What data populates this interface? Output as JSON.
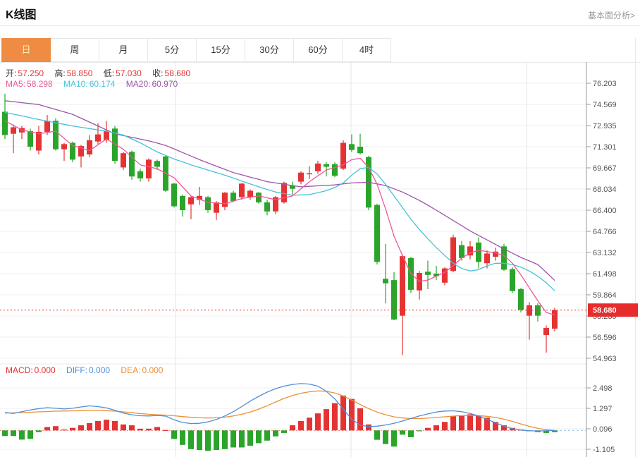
{
  "header": {
    "title": "K线图",
    "link": "基本面分析>"
  },
  "tabs": {
    "items": [
      "日",
      "周",
      "月",
      "5分",
      "15分",
      "30分",
      "60分",
      "4时"
    ],
    "selected": "日"
  },
  "ohlc": {
    "o_label": "开:",
    "o": "57.250",
    "h_label": "高:",
    "h": "58.850",
    "l_label": "低:",
    "l": "57.030",
    "c_label": "收:",
    "c": "58.680"
  },
  "ma_row": {
    "ma5_label": "MA5:",
    "ma5": "58.298",
    "ma10_label": "MA10:",
    "ma10": "60.174",
    "ma20_label": "MA20:",
    "ma20": "60.970"
  },
  "macd_row": {
    "macd_label": "MACD:",
    "macd": "0.000",
    "diff_label": "DIFF:",
    "diff": "0.000",
    "dea_label": "DEA:",
    "dea": "0.000"
  },
  "colors": {
    "up_red": "#e53333",
    "down_green": "#2aa52a",
    "ma5_pink": "#f0569a",
    "ma10_cyan": "#45c2d8",
    "ma20_purple": "#9a55a8",
    "diff_blue": "#4f8fd8",
    "dea_orange": "#ef8f33",
    "tab_active_bg": "#ef8b43",
    "tab_active_text": "#fbf0b5",
    "price_tag_red": "#e62c2c",
    "axis_text": "#555555"
  },
  "chart_data": {
    "type": "candlestick",
    "panels": [
      "price",
      "macd"
    ],
    "title": "K线图",
    "legend": [
      "MA5",
      "MA10",
      "MA20",
      "MACD",
      "DIFF",
      "DEA"
    ],
    "grid": true,
    "price_axis_ticks": [
      "76.203",
      "74.569",
      "72.935",
      "71.301",
      "69.667",
      "68.034",
      "66.400",
      "64.766",
      "63.132",
      "61.498",
      "59.864",
      "58.230",
      "56.596",
      "54.963"
    ],
    "macd_axis_ticks": [
      "2.498",
      "1.297",
      "0.096",
      "-1.105"
    ],
    "current_price": "58.680",
    "candles_ohlc": [
      [
        74.0,
        75.4,
        71.9,
        72.2
      ],
      [
        72.3,
        73.0,
        70.8,
        72.8
      ],
      [
        72.4,
        72.9,
        71.9,
        72.75
      ],
      [
        72.5,
        72.7,
        71.0,
        71.3
      ],
      [
        71.0,
        72.9,
        70.7,
        72.45
      ],
      [
        72.45,
        73.75,
        72.2,
        73.3
      ],
      [
        73.3,
        73.5,
        71.0,
        71.1
      ],
      [
        71.1,
        71.6,
        70.2,
        71.5
      ],
      [
        71.6,
        71.7,
        70.1,
        70.3
      ],
      [
        70.55,
        71.45,
        69.7,
        71.35
      ],
      [
        70.7,
        72.2,
        70.5,
        71.8
      ],
      [
        71.7,
        73.1,
        71.5,
        72.25
      ],
      [
        71.8,
        73.3,
        71.6,
        72.5
      ],
      [
        72.7,
        72.9,
        70.0,
        70.2
      ],
      [
        69.7,
        70.9,
        69.5,
        70.8
      ],
      [
        70.9,
        71.0,
        68.75,
        69.0
      ],
      [
        69.4,
        69.6,
        68.6,
        68.85
      ],
      [
        68.85,
        70.4,
        68.6,
        70.3
      ],
      [
        70.2,
        70.3,
        69.5,
        69.75
      ],
      [
        70.55,
        70.6,
        67.8,
        67.9
      ],
      [
        68.45,
        68.5,
        66.6,
        66.7
      ],
      [
        67.5,
        67.6,
        65.9,
        66.4
      ],
      [
        66.85,
        67.5,
        65.7,
        67.4
      ],
      [
        67.2,
        68.2,
        66.8,
        67.5
      ],
      [
        67.4,
        67.5,
        66.2,
        66.4
      ],
      [
        66.2,
        67.1,
        65.65,
        67.0
      ],
      [
        66.65,
        67.8,
        66.4,
        67.75
      ],
      [
        67.75,
        67.9,
        67.0,
        67.1
      ],
      [
        67.4,
        68.5,
        67.2,
        68.45
      ],
      [
        67.4,
        68.0,
        67.2,
        67.9
      ],
      [
        67.75,
        67.8,
        66.9,
        67.0
      ],
      [
        67.0,
        67.2,
        66.0,
        66.3
      ],
      [
        66.3,
        67.5,
        66.1,
        67.4
      ],
      [
        67.0,
        68.6,
        66.9,
        68.5
      ],
      [
        68.3,
        68.6,
        67.6,
        68.05
      ],
      [
        68.6,
        69.4,
        68.4,
        69.3
      ],
      [
        69.2,
        69.8,
        68.8,
        69.25
      ],
      [
        69.4,
        70.2,
        69.2,
        70.0
      ],
      [
        69.95,
        70.1,
        69.0,
        69.75
      ],
      [
        69.95,
        70.1,
        68.95,
        69.05
      ],
      [
        69.6,
        71.8,
        69.5,
        71.6
      ],
      [
        71.5,
        72.25,
        70.9,
        71.05
      ],
      [
        71.3,
        72.3,
        70.7,
        70.8
      ],
      [
        70.5,
        70.6,
        66.4,
        66.6
      ],
      [
        66.8,
        66.9,
        62.2,
        62.4
      ],
      [
        61.1,
        63.8,
        59.2,
        60.75
      ],
      [
        61.0,
        61.6,
        57.9,
        57.95
      ],
      [
        58.25,
        63.0,
        55.2,
        62.85
      ],
      [
        62.7,
        62.8,
        60.0,
        60.25
      ],
      [
        60.2,
        61.7,
        59.5,
        61.55
      ],
      [
        61.65,
        62.5,
        60.3,
        61.4
      ],
      [
        61.5,
        62.1,
        61.0,
        61.3
      ],
      [
        60.8,
        62.0,
        60.6,
        61.9
      ],
      [
        61.7,
        64.5,
        61.6,
        64.3
      ],
      [
        63.7,
        64.0,
        62.5,
        62.7
      ],
      [
        62.9,
        64.0,
        62.6,
        63.6
      ],
      [
        63.9,
        64.3,
        61.9,
        62.4
      ],
      [
        62.3,
        63.3,
        61.9,
        63.05
      ],
      [
        62.8,
        63.5,
        62.5,
        63.2
      ],
      [
        63.6,
        63.8,
        61.7,
        61.8
      ],
      [
        61.85,
        62.0,
        60.0,
        60.15
      ],
      [
        60.3,
        60.4,
        58.5,
        58.7
      ],
      [
        58.25,
        59.3,
        56.4,
        59.05
      ],
      [
        59.05,
        59.2,
        57.8,
        58.25
      ],
      [
        56.76,
        57.5,
        55.4,
        57.3
      ],
      [
        57.25,
        58.85,
        57.03,
        58.68
      ]
    ],
    "ma5": [
      73.3,
      72.95,
      72.6,
      72.45,
      72.3,
      72.4,
      72.5,
      71.95,
      71.4,
      71.2,
      71.0,
      71.45,
      71.9,
      71.5,
      71.1,
      70.5,
      69.9,
      69.75,
      69.6,
      69.25,
      68.9,
      68.2,
      67.5,
      67.25,
      67.0,
      66.95,
      66.9,
      67.1,
      67.3,
      67.4,
      67.5,
      67.35,
      67.2,
      67.35,
      67.5,
      68.05,
      68.6,
      69.05,
      69.5,
      69.7,
      69.9,
      70.3,
      70.4,
      69.7,
      68.4,
      66.5,
      64.4,
      62.9,
      61.5,
      60.9,
      61.0,
      61.3,
      61.6,
      62.1,
      62.7,
      63.1,
      63.3,
      63.2,
      63.1,
      62.9,
      62.3,
      61.4,
      60.4,
      59.4,
      58.5,
      58.3
    ],
    "ma10": [
      73.95,
      73.81,
      73.68,
      73.54,
      73.4,
      73.28,
      73.15,
      73.03,
      72.9,
      72.8,
      72.7,
      72.6,
      72.5,
      72.35,
      72.2,
      71.9,
      71.6,
      71.25,
      70.9,
      70.63,
      70.35,
      70.13,
      69.9,
      69.7,
      69.5,
      69.3,
      69.1,
      68.88,
      68.65,
      68.43,
      68.2,
      68.0,
      67.8,
      67.68,
      67.55,
      67.58,
      67.6,
      67.75,
      67.9,
      68.15,
      68.5,
      69.1,
      69.6,
      69.7,
      69.2,
      68.4,
      67.5,
      66.6,
      65.7,
      64.9,
      64.2,
      63.5,
      62.9,
      62.3,
      61.9,
      61.7,
      61.8,
      62.1,
      62.3,
      62.3,
      62.2,
      62.0,
      61.7,
      61.3,
      60.8,
      60.17
    ],
    "ma20": [
      74.85,
      74.78,
      74.7,
      74.63,
      74.55,
      74.36,
      74.17,
      73.99,
      73.8,
      73.5,
      73.2,
      72.9,
      72.6,
      72.3,
      72.16,
      72.02,
      71.89,
      71.75,
      71.58,
      71.4,
      71.13,
      70.85,
      70.58,
      70.3,
      70.05,
      69.8,
      69.55,
      69.3,
      69.13,
      68.95,
      68.78,
      68.6,
      68.5,
      68.4,
      68.3,
      68.2,
      68.24,
      68.28,
      68.31,
      68.35,
      68.43,
      68.5,
      68.53,
      68.55,
      68.43,
      68.3,
      68.05,
      67.8,
      67.48,
      67.15,
      66.78,
      66.4,
      66.0,
      65.6,
      65.2,
      64.8,
      64.45,
      64.1,
      63.75,
      63.4,
      63.08,
      62.75,
      62.48,
      62.2,
      61.6,
      60.97
    ],
    "macd": {
      "hist": [
        -0.33,
        -0.33,
        -0.54,
        -0.5,
        -0.1,
        0.2,
        0.25,
        0.05,
        0.15,
        0.3,
        0.43,
        0.55,
        0.63,
        0.55,
        0.35,
        0.3,
        0.1,
        0.1,
        0.2,
        0.02,
        -0.5,
        -0.85,
        -1.1,
        -1.15,
        -1.2,
        -1.15,
        -1.1,
        -1.0,
        -1.0,
        -0.9,
        -0.75,
        -0.6,
        -0.35,
        -0.15,
        0.3,
        0.55,
        0.75,
        1.0,
        1.25,
        1.6,
        2.05,
        1.85,
        1.3,
        0.35,
        -0.55,
        -0.8,
        -0.95,
        -0.25,
        -0.4,
        -0.05,
        0.15,
        0.3,
        0.5,
        0.85,
        0.85,
        0.95,
        0.85,
        0.75,
        0.5,
        0.3,
        0.15,
        0.05,
        -0.05,
        -0.1,
        -0.15,
        -0.1
      ],
      "diff": [
        1.05,
        1.0,
        1.1,
        1.2,
        1.28,
        1.33,
        1.3,
        1.26,
        1.3,
        1.38,
        1.44,
        1.4,
        1.32,
        1.18,
        1.02,
        0.92,
        0.86,
        0.85,
        0.88,
        0.84,
        0.62,
        0.47,
        0.4,
        0.42,
        0.5,
        0.64,
        0.85,
        1.1,
        1.4,
        1.72,
        2.0,
        2.25,
        2.45,
        2.6,
        2.7,
        2.75,
        2.72,
        2.6,
        2.3,
        1.85,
        1.25,
        0.65,
        0.32,
        0.22,
        0.25,
        0.32,
        0.42,
        0.55,
        0.7,
        0.85,
        0.97,
        1.08,
        1.14,
        1.15,
        1.1,
        1.0,
        0.85,
        0.65,
        0.45,
        0.25,
        0.1,
        0.02,
        -0.02,
        -0.03,
        -0.02,
        0.0
      ],
      "dea": [
        1.02,
        1.03,
        1.05,
        1.07,
        1.09,
        1.11,
        1.13,
        1.14,
        1.15,
        1.16,
        1.17,
        1.17,
        1.16,
        1.13,
        1.09,
        1.04,
        0.99,
        0.95,
        0.92,
        0.9,
        0.86,
        0.81,
        0.77,
        0.74,
        0.73,
        0.74,
        0.78,
        0.85,
        0.95,
        1.08,
        1.25,
        1.45,
        1.67,
        1.88,
        2.05,
        2.18,
        2.27,
        2.32,
        2.3,
        2.2,
        2.02,
        1.78,
        1.52,
        1.28,
        1.08,
        0.92,
        0.8,
        0.73,
        0.7,
        0.7,
        0.72,
        0.76,
        0.8,
        0.84,
        0.87,
        0.88,
        0.87,
        0.83,
        0.76,
        0.66,
        0.53,
        0.38,
        0.24,
        0.12,
        0.04,
        0.0
      ]
    }
  }
}
